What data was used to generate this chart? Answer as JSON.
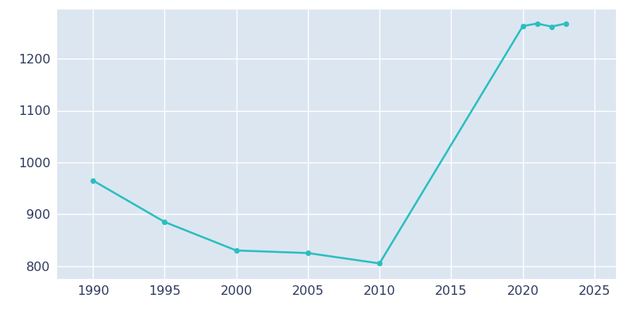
{
  "years": [
    1990,
    1995,
    2000,
    2005,
    2010,
    2020,
    2021,
    2022,
    2023
  ],
  "population": [
    965,
    885,
    830,
    825,
    805,
    1263,
    1268,
    1262,
    1268
  ],
  "line_color": "#2abfbf",
  "marker_style": "o",
  "marker_size": 4,
  "plot_bg_color": "#dce6f1",
  "fig_bg_color": "#ffffff",
  "grid_color": "#ffffff",
  "xlim": [
    1987.5,
    2026.5
  ],
  "ylim": [
    775,
    1295
  ],
  "xticks": [
    1990,
    1995,
    2000,
    2005,
    2010,
    2015,
    2020,
    2025
  ],
  "yticks": [
    800,
    900,
    1000,
    1100,
    1200
  ],
  "line_width": 1.8,
  "tick_color": "#2d3a5e",
  "tick_fontsize": 11.5
}
